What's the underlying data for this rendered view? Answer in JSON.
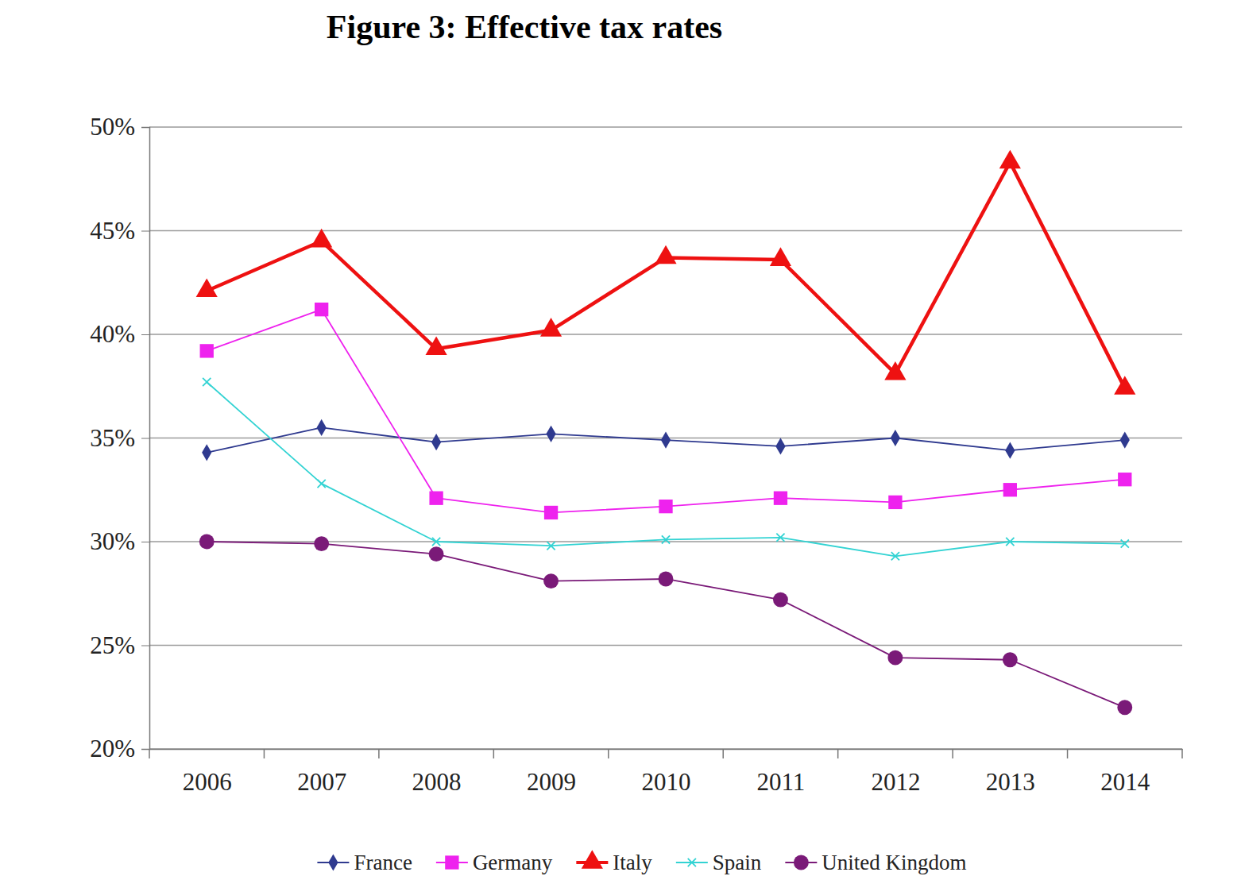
{
  "chart_data": {
    "type": "line",
    "title": "Figure 3: Effective tax rates",
    "categories": [
      "2006",
      "2007",
      "2008",
      "2009",
      "2010",
      "2011",
      "2012",
      "2013",
      "2014"
    ],
    "series": [
      {
        "name": "France",
        "color": "#2f3a8f",
        "marker": "diamond",
        "values": [
          34.3,
          35.5,
          34.8,
          35.2,
          34.9,
          34.6,
          35.0,
          34.4,
          34.9
        ]
      },
      {
        "name": "Germany",
        "color": "#ee22ee",
        "marker": "square",
        "values": [
          39.2,
          41.2,
          32.1,
          31.4,
          31.7,
          32.1,
          31.9,
          32.5,
          33.0
        ]
      },
      {
        "name": "Italy",
        "color": "#ee1111",
        "marker": "triangle",
        "values": [
          42.1,
          44.5,
          39.3,
          40.2,
          43.7,
          43.6,
          38.1,
          48.3,
          37.4
        ]
      },
      {
        "name": "Spain",
        "color": "#33d3d3",
        "marker": "x",
        "values": [
          37.7,
          32.8,
          30.0,
          29.8,
          30.1,
          30.2,
          29.3,
          30.0,
          29.9
        ]
      },
      {
        "name": "United Kingdom",
        "color": "#7a1a78",
        "marker": "circle",
        "values": [
          30.0,
          29.9,
          29.4,
          28.1,
          28.2,
          27.2,
          24.4,
          24.3,
          22.0
        ]
      }
    ],
    "ylim": [
      20,
      50
    ],
    "yticks": [
      {
        "value": 20,
        "label": "20%"
      },
      {
        "value": 25,
        "label": "25%"
      },
      {
        "value": 30,
        "label": "30%"
      },
      {
        "value": 35,
        "label": "35%"
      },
      {
        "value": 40,
        "label": "40%"
      },
      {
        "value": 45,
        "label": "45%"
      },
      {
        "value": 50,
        "label": "50%"
      }
    ],
    "grid": true,
    "legend": "bottom"
  }
}
